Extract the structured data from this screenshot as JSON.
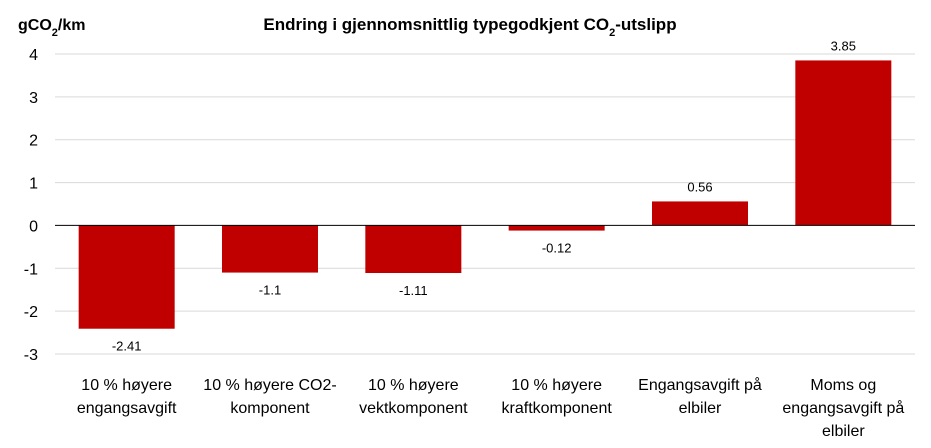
{
  "chart_data": {
    "type": "bar",
    "title": {
      "prefix": "Endring  i gjennomsnittlig  typegodkjent  CO",
      "subscript": "2",
      "suffix": "-utslipp"
    },
    "ylabel": {
      "prefix": "gCO",
      "subscript": "2",
      "suffix": "/km"
    },
    "xlabel": "",
    "categories": [
      [
        "10 % høyere",
        "engangsavgift"
      ],
      [
        "10 % høyere CO2-",
        "komponent"
      ],
      [
        "10 % høyere",
        "vektkomponent"
      ],
      [
        "10 % høyere",
        "kraftkomponent"
      ],
      [
        "Engangsavgift på",
        "elbiler"
      ],
      [
        "Moms og",
        "engangsavgift på",
        "elbiler"
      ]
    ],
    "values": [
      -2.41,
      -1.1,
      -1.11,
      -0.12,
      0.56,
      3.85
    ],
    "value_labels": [
      "-2.41",
      "-1.1",
      "-1.11",
      "-0.12",
      "0.56",
      "3.85"
    ],
    "ylim": [
      -3,
      4
    ],
    "yticks": [
      4,
      3,
      2,
      1,
      0,
      -1,
      -2,
      -3
    ],
    "grid": true,
    "legend": "none",
    "colors": {
      "bar": "#C00000",
      "grid": "#D9D9D9",
      "axis": "#000000"
    }
  }
}
